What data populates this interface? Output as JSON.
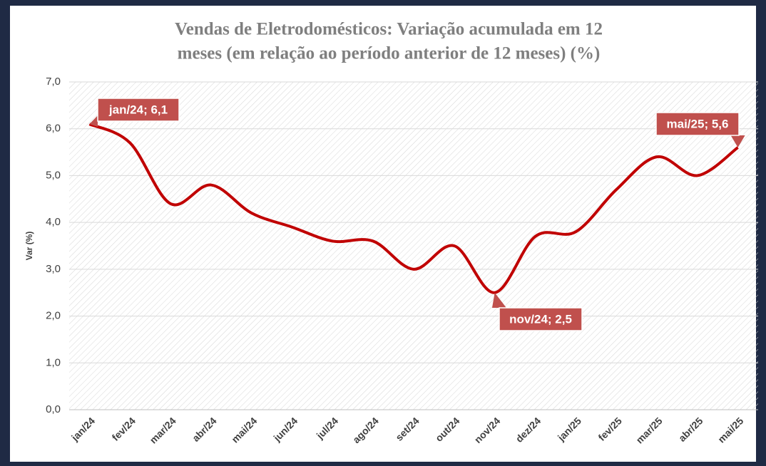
{
  "chart_data": {
    "type": "line",
    "title": [
      "Vendas de Eletrodomésticos: Variação acumulada em 12",
      "meses (em relação ao período anterior de 12 meses) (%)"
    ],
    "y_label": "Var (%)",
    "categories": [
      "jan/24",
      "fev/24",
      "mar/24",
      "abr/24",
      "mai/24",
      "jun/24",
      "jul/24",
      "ago/24",
      "set/24",
      "out/24",
      "nov/24",
      "dez/24",
      "jan/25",
      "fev/25",
      "mar/25",
      "abr/25",
      "mai/25"
    ],
    "values": [
      6.1,
      5.7,
      4.4,
      4.8,
      4.2,
      3.9,
      3.6,
      3.6,
      3.0,
      3.5,
      2.5,
      3.7,
      3.8,
      4.7,
      5.4,
      5.0,
      5.6
    ],
    "color": "#c00000",
    "ylim": [
      0,
      7
    ],
    "yticks": [
      {
        "value": 0,
        "label": "0,0"
      },
      {
        "value": 1,
        "label": "1,0"
      },
      {
        "value": 2,
        "label": "2,0"
      },
      {
        "value": 3,
        "label": "3,0"
      },
      {
        "value": 4,
        "label": "4,0"
      },
      {
        "value": 5,
        "label": "5,0"
      },
      {
        "value": 6,
        "label": "6,0"
      },
      {
        "value": 7,
        "label": "7,0"
      }
    ],
    "grid": true,
    "annotations": [
      "jan/24; 6,1",
      "nov/24; 2,5",
      "mai/25; 5,6"
    ]
  }
}
